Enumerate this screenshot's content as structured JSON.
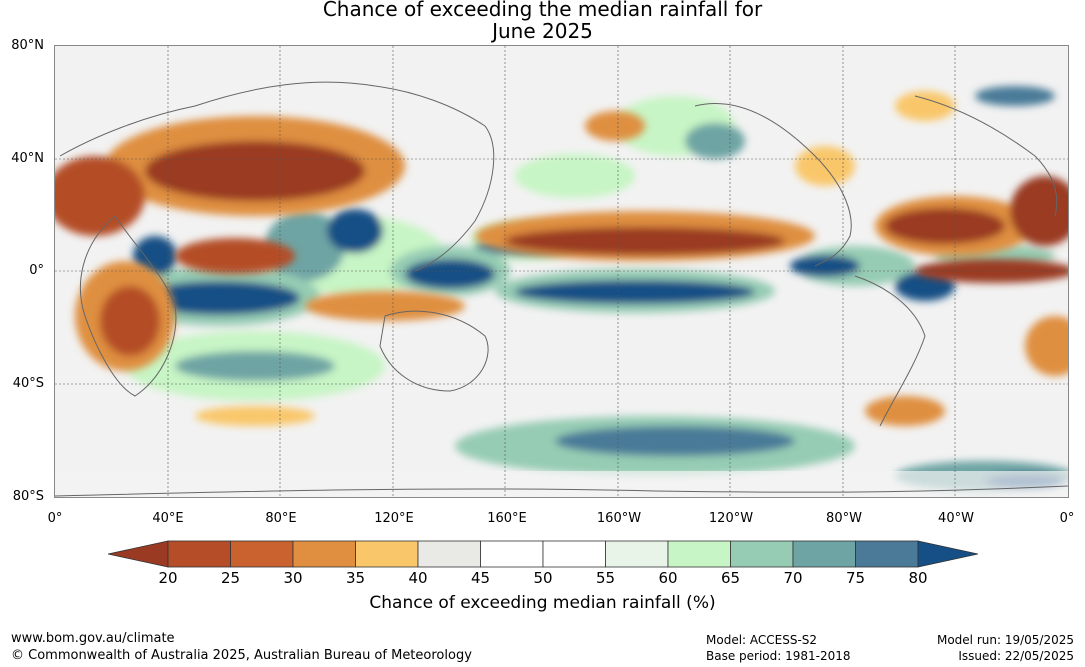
{
  "title_line1": "Chance of exceeding the median rainfall for",
  "title_line2": "June 2025",
  "lat_labels": [
    "80°N",
    "40°N",
    "0°",
    "40°S",
    "80°S"
  ],
  "lon_labels": [
    "0°",
    "40°E",
    "80°E",
    "120°E",
    "160°E",
    "160°W",
    "120°W",
    "80°W",
    "40°W",
    "0°"
  ],
  "colorbar": {
    "ticks": [
      "20",
      "25",
      "30",
      "35",
      "40",
      "45",
      "50",
      "55",
      "60",
      "65",
      "70",
      "75",
      "80"
    ],
    "colors": [
      "#9a3a22",
      "#b44d28",
      "#c9622f",
      "#df8f3f",
      "#f9c76a",
      "#e9e9e6",
      "#ffffff",
      "#ffffff",
      "#e8f4e8",
      "#c7f5c5",
      "#96ccb4",
      "#6ea4a4",
      "#4a7a98",
      "#154f85"
    ],
    "title": "Chance of exceeding median rainfall (%)"
  },
  "footer": {
    "website": "www.bom.gov.au/climate",
    "copyright": "© Commonwealth of Australia 2025, Australian Bureau of Meteorology",
    "model": "Model: ACCESS-S2",
    "base_period": "Base period: 1981-2018",
    "model_run": "Model run: 19/05/2025",
    "issued": "Issued: 22/05/2025"
  }
}
